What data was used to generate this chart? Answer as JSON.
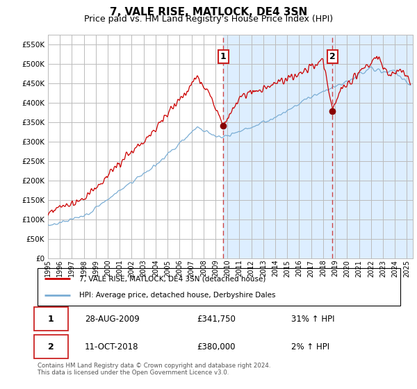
{
  "title": "7, VALE RISE, MATLOCK, DE4 3SN",
  "subtitle": "Price paid vs. HM Land Registry's House Price Index (HPI)",
  "ylim": [
    0,
    575000
  ],
  "yticks": [
    0,
    50000,
    100000,
    150000,
    200000,
    250000,
    300000,
    350000,
    400000,
    450000,
    500000,
    550000
  ],
  "xlim_start": 1995.0,
  "xlim_end": 2025.5,
  "xtick_years": [
    1995,
    1996,
    1997,
    1998,
    1999,
    2000,
    2001,
    2002,
    2003,
    2004,
    2005,
    2006,
    2007,
    2008,
    2009,
    2010,
    2011,
    2012,
    2013,
    2014,
    2015,
    2016,
    2017,
    2018,
    2019,
    2020,
    2021,
    2022,
    2023,
    2024,
    2025
  ],
  "transaction1": {
    "date_num": 2009.66,
    "price": 341750,
    "label": "1",
    "pct": "31%"
  },
  "transaction2": {
    "date_num": 2018.78,
    "price": 380000,
    "label": "2",
    "pct": "2%"
  },
  "hpi_color": "#7aadd4",
  "price_color": "#cc0000",
  "shaded_color": "#ddeeff",
  "grid_color": "#bbbbbb",
  "legend_label_price": "7, VALE RISE, MATLOCK, DE4 3SN (detached house)",
  "legend_label_hpi": "HPI: Average price, detached house, Derbyshire Dales",
  "table_row1": [
    "1",
    "28-AUG-2009",
    "£341,750",
    "31% ↑ HPI"
  ],
  "table_row2": [
    "2",
    "11-OCT-2018",
    "£380,000",
    "2% ↑ HPI"
  ],
  "footnote": "Contains HM Land Registry data © Crown copyright and database right 2024.\nThis data is licensed under the Open Government Licence v3.0.",
  "title_fontsize": 11,
  "subtitle_fontsize": 9
}
